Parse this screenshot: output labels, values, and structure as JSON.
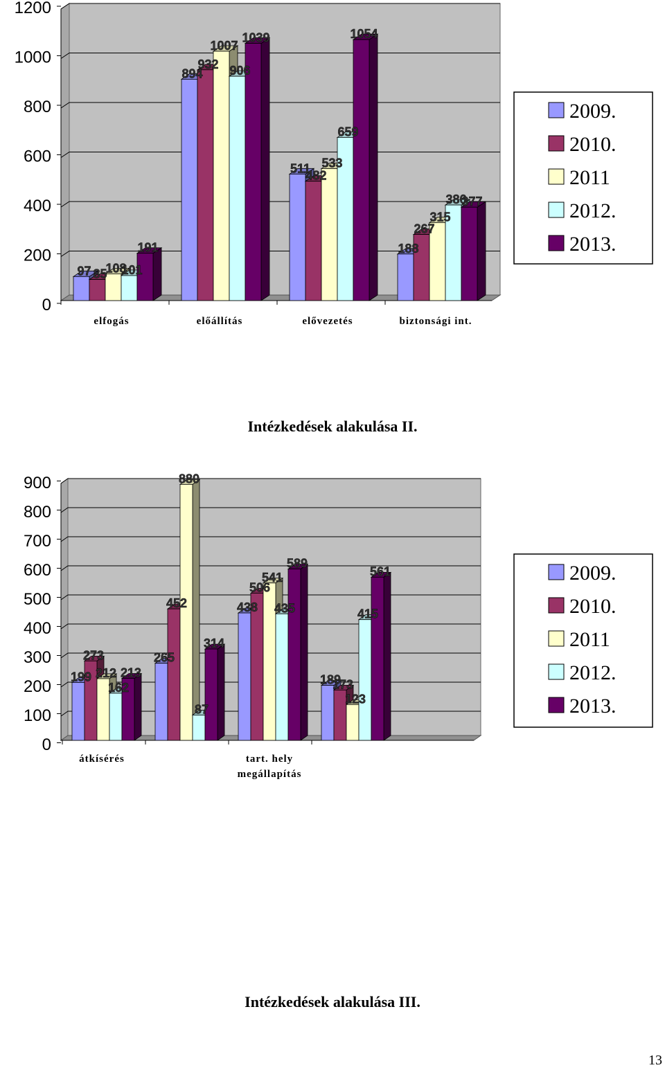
{
  "chart_data": [
    {
      "type": "bar",
      "categories": [
        "elfogás",
        "előállítás",
        "elővezetés",
        "biztonsági int."
      ],
      "series": [
        {
          "name": "2009.",
          "values": [
            97,
            894,
            511,
            188
          ],
          "color": "#9999ff"
        },
        {
          "name": "2010.",
          "values": [
            85,
            932,
            482,
            267
          ],
          "color": "#993366"
        },
        {
          "name": "2011",
          "values": [
            108,
            1007,
            533,
            315
          ],
          "color": "#ffffcc"
        },
        {
          "name": "2012.",
          "values": [
            101,
            906,
            659,
            386
          ],
          "color": "#ccffff"
        },
        {
          "name": "2013.",
          "values": [
            191,
            1039,
            1054,
            377
          ],
          "color": "#660066"
        }
      ],
      "ylim": [
        0,
        1200
      ],
      "yticks": [
        "0",
        "200",
        "400",
        "600",
        "800",
        "1000",
        "1200"
      ],
      "grid": true,
      "legend_position": "right"
    },
    {
      "type": "bar",
      "categories": [
        "átkísérés",
        "",
        "tart. hely megállapítás",
        ""
      ],
      "series": [
        {
          "name": "2009.",
          "values": [
            199,
            265,
            438,
            189
          ],
          "color": "#9999ff"
        },
        {
          "name": "2010.",
          "values": [
            273,
            452,
            506,
            173
          ],
          "color": "#993366"
        },
        {
          "name": "2011",
          "values": [
            212,
            880,
            541,
            123
          ],
          "color": "#ffffcc"
        },
        {
          "name": "2012.",
          "values": [
            162,
            87,
            435,
            415
          ],
          "color": "#ccffff"
        },
        {
          "name": "2013.",
          "values": [
            213,
            314,
            589,
            561
          ],
          "color": "#660066"
        }
      ],
      "ylim": [
        0,
        900
      ],
      "yticks": [
        "0",
        "100",
        "200",
        "300",
        "400",
        "500",
        "600",
        "700",
        "800",
        "900"
      ],
      "grid": true,
      "legend_position": "right"
    }
  ],
  "captions": [
    "Intézkedések alakulása II.",
    "Intézkedések alakulása III."
  ],
  "page_number": "13"
}
